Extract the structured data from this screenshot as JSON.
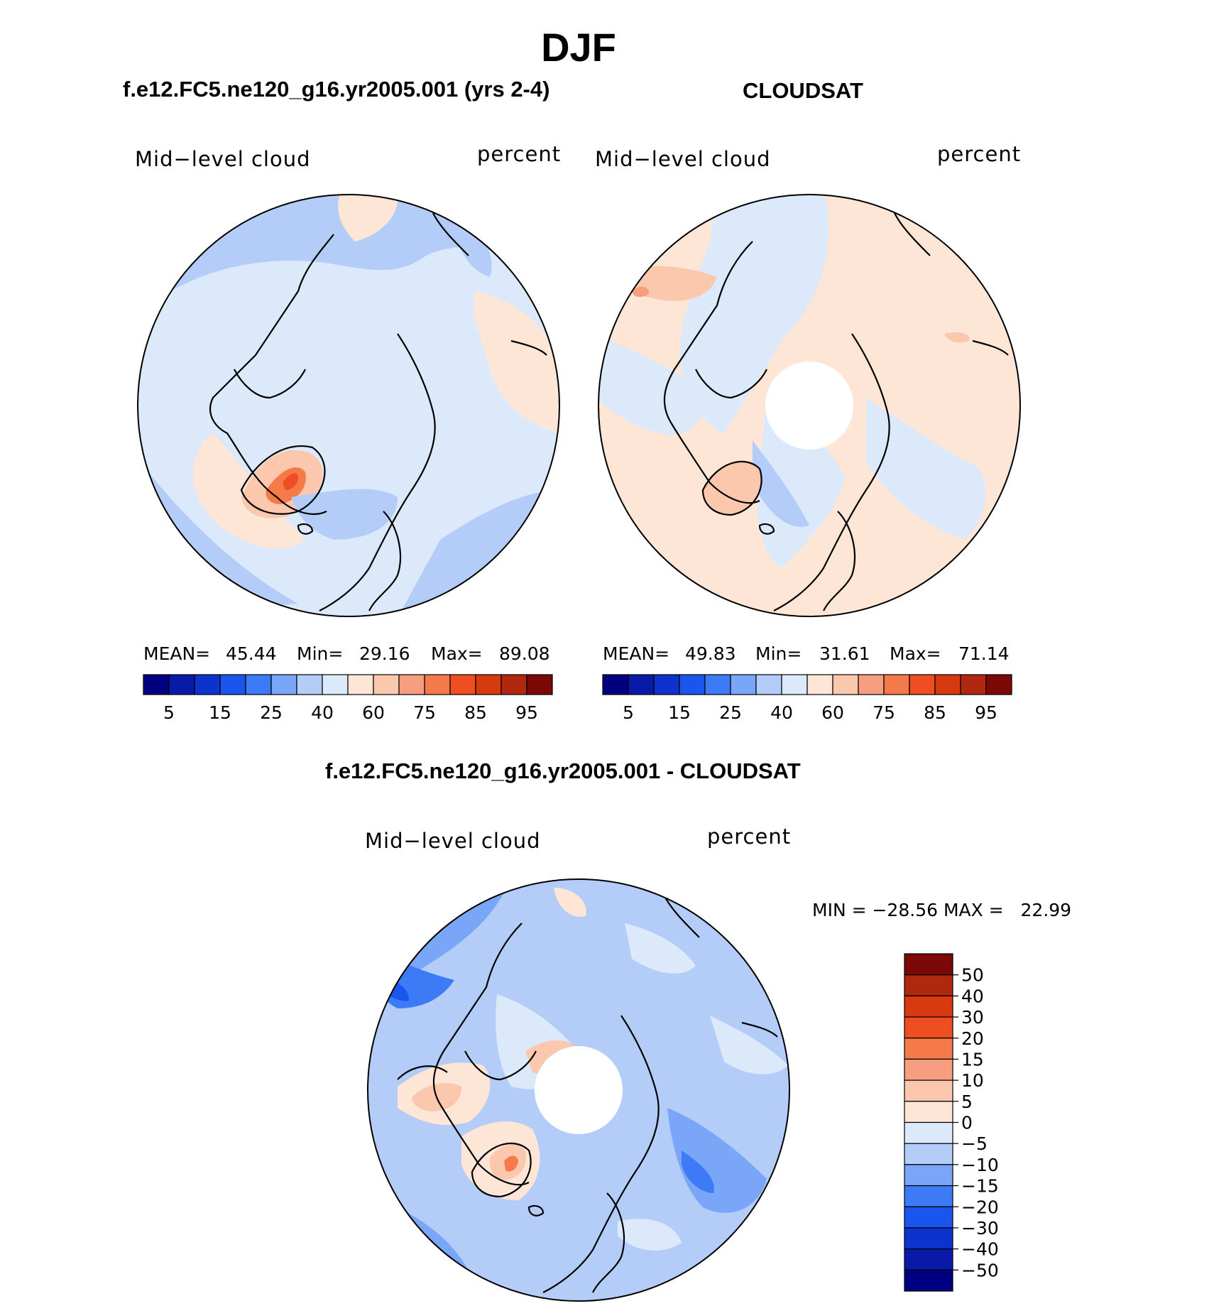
{
  "title": "DJF",
  "panels": [
    {
      "id": "model",
      "title": "f.e12.FC5.ne120_g16.yr2005.001 (yrs 2-4)",
      "variable": "Mid−level cloud",
      "units": "percent",
      "stats": {
        "mean_label": "MEAN=",
        "mean": "45.44",
        "min_label": "Min=",
        "min": "29.16",
        "max_label": "Max=",
        "max": "89.08"
      }
    },
    {
      "id": "obs",
      "title": "CLOUDSAT",
      "variable": "Mid−level cloud",
      "units": "percent",
      "stats": {
        "mean_label": "MEAN=",
        "mean": "49.83",
        "min_label": "Min=",
        "min": "31.61",
        "max_label": "Max=",
        "max": "71.14"
      }
    },
    {
      "id": "diff",
      "title": "f.e12.FC5.ne120_g16.yr2005.001 - CLOUDSAT",
      "variable": "Mid−level cloud",
      "units": "percent",
      "minmax_text": "MIN = −28.56 MAX =   22.99"
    }
  ],
  "colorbar_top": {
    "colors": [
      "#000080",
      "#0a1aa8",
      "#0d33cc",
      "#1a55ee",
      "#3d7af6",
      "#7aa6f8",
      "#b4cdf8",
      "#dce9fb",
      "#fde6d6",
      "#fbc8ae",
      "#f79e80",
      "#f47a4a",
      "#ef4e22",
      "#d83a10",
      "#b02810",
      "#7d0808"
    ],
    "labels": [
      "5",
      "15",
      "25",
      "40",
      "60",
      "75",
      "85",
      "95"
    ]
  },
  "colorbar_diff": {
    "colors": [
      "#7d0808",
      "#b02810",
      "#d83a10",
      "#ef4e22",
      "#f47a4a",
      "#f79e80",
      "#fbc8ae",
      "#fde6d6",
      "#dce9fb",
      "#b4cdf8",
      "#7aa6f8",
      "#3d7af6",
      "#1a55ee",
      "#0d33cc",
      "#0a1aa8",
      "#000080"
    ],
    "labels": [
      "50",
      "40",
      "30",
      "20",
      "15",
      "10",
      "5",
      "0",
      "−5",
      "−10",
      "−15",
      "−20",
      "−30",
      "−40",
      "−50"
    ]
  }
}
